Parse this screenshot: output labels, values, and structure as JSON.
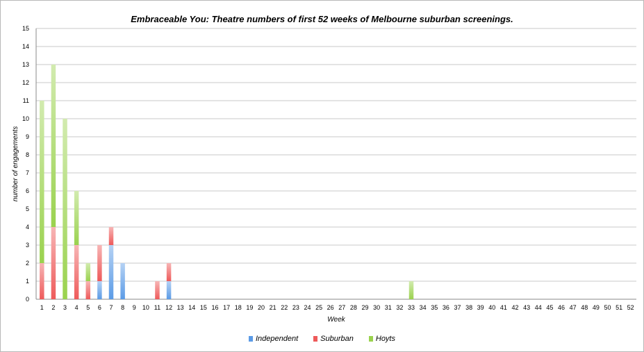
{
  "chart_data": {
    "type": "bar",
    "stacked": true,
    "title": "Embraceable You: Theatre numbers of first 52 weeks of Melbourne suburban screenings.",
    "xlabel": "Week",
    "ylabel": "number of engagements",
    "ylim": [
      0,
      15
    ],
    "grid": true,
    "legend_position": "bottom",
    "categories": [
      "1",
      "2",
      "3",
      "4",
      "5",
      "6",
      "7",
      "8",
      "9",
      "10",
      "11",
      "12",
      "13",
      "14",
      "15",
      "16",
      "17",
      "18",
      "19",
      "20",
      "21",
      "22",
      "23",
      "24",
      "25",
      "26",
      "27",
      "28",
      "29",
      "30",
      "31",
      "32",
      "33",
      "34",
      "35",
      "36",
      "37",
      "38",
      "39",
      "40",
      "41",
      "42",
      "43",
      "44",
      "45",
      "46",
      "47",
      "48",
      "49",
      "50",
      "51",
      "52"
    ],
    "series": [
      {
        "name": "Independent",
        "color": "#5b9be6",
        "values": [
          0,
          0,
          0,
          0,
          0,
          1,
          3,
          2,
          0,
          0,
          0,
          1,
          0,
          0,
          0,
          0,
          0,
          0,
          0,
          0,
          0,
          0,
          0,
          0,
          0,
          0,
          0,
          0,
          0,
          0,
          0,
          0,
          0,
          0,
          0,
          0,
          0,
          0,
          0,
          0,
          0,
          0,
          0,
          0,
          0,
          0,
          0,
          0,
          0,
          0,
          0,
          0
        ]
      },
      {
        "name": "Suburban",
        "color": "#ee5a5a",
        "values": [
          2,
          4,
          0,
          3,
          1,
          2,
          1,
          0,
          0,
          0,
          1,
          1,
          0,
          0,
          0,
          0,
          0,
          0,
          0,
          0,
          0,
          0,
          0,
          0,
          0,
          0,
          0,
          0,
          0,
          0,
          0,
          0,
          0,
          0,
          0,
          0,
          0,
          0,
          0,
          0,
          0,
          0,
          0,
          0,
          0,
          0,
          0,
          0,
          0,
          0,
          0,
          0
        ]
      },
      {
        "name": "Hoyts",
        "color": "#9ad24e",
        "values": [
          9,
          9,
          10,
          3,
          1,
          0,
          0,
          0,
          0,
          0,
          0,
          0,
          0,
          0,
          0,
          0,
          0,
          0,
          0,
          0,
          0,
          0,
          0,
          0,
          0,
          0,
          0,
          0,
          0,
          0,
          0,
          0,
          1,
          0,
          0,
          0,
          0,
          0,
          0,
          0,
          0,
          0,
          0,
          0,
          0,
          0,
          0,
          0,
          0,
          0,
          0,
          0
        ]
      }
    ]
  }
}
